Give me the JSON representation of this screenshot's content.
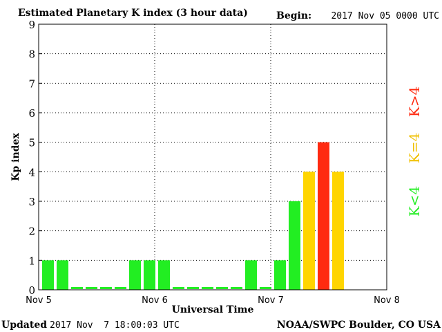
{
  "header": {
    "title": "Estimated Planetary K index (3 hour data)",
    "begin_label": "Begin:",
    "begin_value": "2017 Nov 05 0000 UTC"
  },
  "footer": {
    "updated_label": "Updated",
    "updated_value": "2017 Nov  7 18:00:03 UTC",
    "source": "NOAA/SWPC Boulder, CO USA"
  },
  "legend": {
    "green": "K<4",
    "yellow": "K=4",
    "red": "K>4"
  },
  "colors": {
    "green": "#22ee22",
    "yellow": "#ffd500",
    "red": "#ff2a10",
    "legend_yellow": "#f0c000",
    "legend_red": "#ff2a10",
    "grid": "#000000"
  },
  "chart_data": {
    "type": "bar",
    "title": "Estimated Planetary K index (3 hour data)",
    "xlabel": "Universal Time",
    "ylabel": "Kp index",
    "ylim": [
      0,
      9
    ],
    "yticks": [
      0,
      1,
      2,
      3,
      4,
      5,
      6,
      7,
      8,
      9
    ],
    "x_ticks": [
      "Nov 5",
      "Nov 6",
      "Nov 7",
      "Nov 8"
    ],
    "interval_hours": 3,
    "total_intervals": 24,
    "values": [
      1,
      1,
      0,
      0,
      0,
      0,
      1,
      1,
      1,
      0,
      0,
      0,
      0,
      0,
      1,
      0,
      1,
      3,
      4,
      5,
      4
    ],
    "grid": true
  }
}
